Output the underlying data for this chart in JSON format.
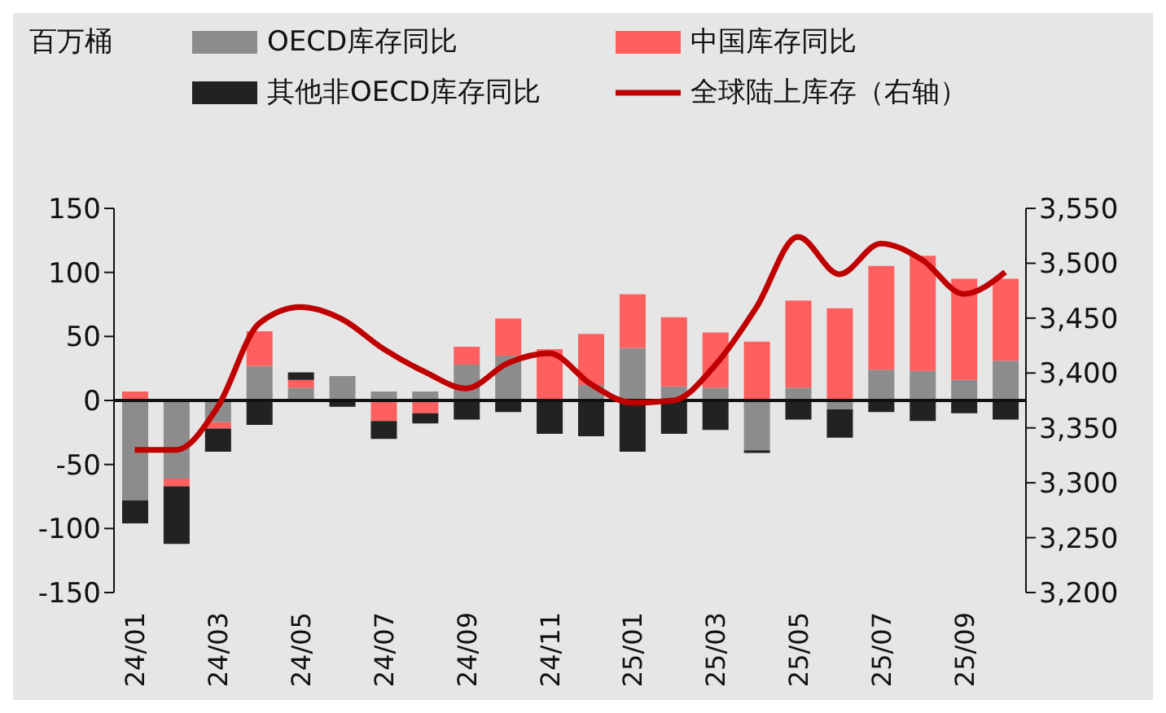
{
  "chart_data": {
    "type": "bar",
    "stacked": true,
    "ylabel": "百万桶",
    "categories": [
      "24/01",
      null,
      "24/03",
      null,
      "24/05",
      null,
      "24/07",
      null,
      "24/09",
      null,
      "24/11",
      null,
      "25/01",
      null,
      "25/03",
      null,
      "25/05",
      null,
      "25/07",
      null,
      "25/09",
      null
    ],
    "series": [
      {
        "name": "OECD库存同比",
        "color": "#8c8c8c",
        "values": [
          -78,
          -61,
          -17,
          27,
          10,
          19,
          7,
          7,
          28,
          35,
          0,
          12,
          41,
          11,
          10,
          -39,
          10,
          -7,
          24,
          23,
          16,
          31
        ]
      },
      {
        "name": "中国库存同比",
        "color": "#ff5f5f",
        "values": [
          7,
          -6,
          -5,
          27,
          6,
          null,
          -16,
          -10,
          14,
          29,
          40,
          40,
          42,
          54,
          43,
          46,
          68,
          72,
          81,
          90,
          79,
          64
        ]
      },
      {
        "name": "其他非OECD库存同比",
        "color": "#222222",
        "values": [
          -18,
          -45,
          -18,
          -19,
          6,
          -5,
          -14,
          -8,
          -15,
          -9,
          -26,
          -28,
          -40,
          -26,
          -23,
          -2,
          -15,
          -22,
          -9,
          -16,
          -10,
          -15
        ]
      },
      {
        "name": "全球陆上库存（右轴）",
        "type": "line",
        "axis": "y2",
        "color": "#c00000",
        "values": [
          3330,
          3330,
          3369,
          3445,
          3460,
          3449,
          3422,
          3401,
          3386,
          3409,
          3418,
          3390,
          3373,
          3375,
          3407,
          3460,
          3524,
          3490,
          3518,
          3503,
          3472,
          3492
        ]
      }
    ],
    "ylim": [
      -150,
      150
    ],
    "yticks": [
      -150,
      -100,
      -50,
      0,
      50,
      100,
      150
    ],
    "y2lim": [
      3200,
      3550
    ],
    "y2ticks": [
      {
        "value": 3200,
        "label": "3,200"
      },
      {
        "value": 3250,
        "label": "3,250"
      },
      {
        "value": 3300,
        "label": "3,300"
      },
      {
        "value": 3350,
        "label": "3,350"
      },
      {
        "value": 3400,
        "label": "3,400"
      },
      {
        "value": 3450,
        "label": "3,450"
      },
      {
        "value": 3500,
        "label": "3,500"
      },
      {
        "value": 3550,
        "label": "3,550"
      }
    ],
    "legend": "top",
    "marker": "none",
    "line_style": "solid"
  }
}
